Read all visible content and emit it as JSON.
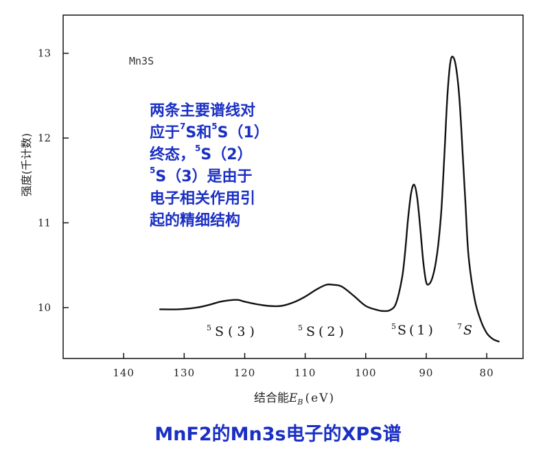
{
  "chart_data": {
    "type": "line",
    "title": "MnF2的Mn3s电子的XPS谱",
    "inset_label": "Mn3S",
    "xlabel": "结合能",
    "xlabel_symbol": "E",
    "xlabel_subscript": "B",
    "xlabel_unit": "(eV)",
    "ylabel": "强度(千计数)",
    "xlim": [
      150,
      74
    ],
    "ylim": [
      9.4,
      13.45
    ],
    "x_reversed": true,
    "grid": false,
    "x_ticks": [
      140,
      130,
      120,
      110,
      100,
      90,
      80
    ],
    "y_ticks": [
      10,
      11,
      12,
      13
    ],
    "series": [
      {
        "color": "#111111",
        "x": [
          134,
          131,
          128,
          126,
          124,
          122,
          121,
          120,
          118,
          116,
          114,
          112,
          110,
          108,
          106.5,
          105.5,
          104,
          102,
          100,
          98,
          97,
          96,
          95,
          94,
          93.5,
          93,
          92.5,
          92,
          91.5,
          91,
          90.5,
          90,
          89.5,
          89,
          88.5,
          88,
          87.5,
          87,
          86.5,
          86,
          85.5,
          85,
          84.5,
          84,
          83.5,
          83,
          82,
          81,
          80,
          79,
          78
        ],
        "y": [
          9.98,
          9.98,
          10.0,
          10.03,
          10.07,
          10.09,
          10.09,
          10.07,
          10.04,
          10.02,
          10.02,
          10.06,
          10.13,
          10.22,
          10.27,
          10.27,
          10.25,
          10.14,
          10.02,
          9.97,
          9.96,
          9.97,
          10.05,
          10.35,
          10.65,
          11.05,
          11.35,
          11.45,
          11.3,
          10.95,
          10.55,
          10.3,
          10.28,
          10.35,
          10.5,
          10.75,
          11.15,
          11.8,
          12.5,
          12.9,
          12.95,
          12.8,
          12.45,
          11.85,
          11.2,
          10.6,
          10.1,
          9.85,
          9.7,
          9.63,
          9.6
        ]
      }
    ],
    "peak_labels": [
      {
        "text": "S(3)",
        "sup": "5"
      },
      {
        "text": "S(2)",
        "sup": "5"
      },
      {
        "text": "S(1)",
        "sup": "5"
      },
      {
        "text": "S",
        "sup": "7"
      }
    ],
    "annotation": {
      "line1": "两条主要谱线对",
      "line2a": "应于",
      "line2_sup1": "7",
      "line2b": "S和",
      "line2_sup2": "5",
      "line2c": "S（1）",
      "line3a": "终态，",
      "line3_sup": "5",
      "line3b": "S（2）",
      "line4_sup": "5",
      "line4a": "S（3）是由于",
      "line5": "电子相关作用引",
      "line6": "起的精细结构"
    }
  }
}
